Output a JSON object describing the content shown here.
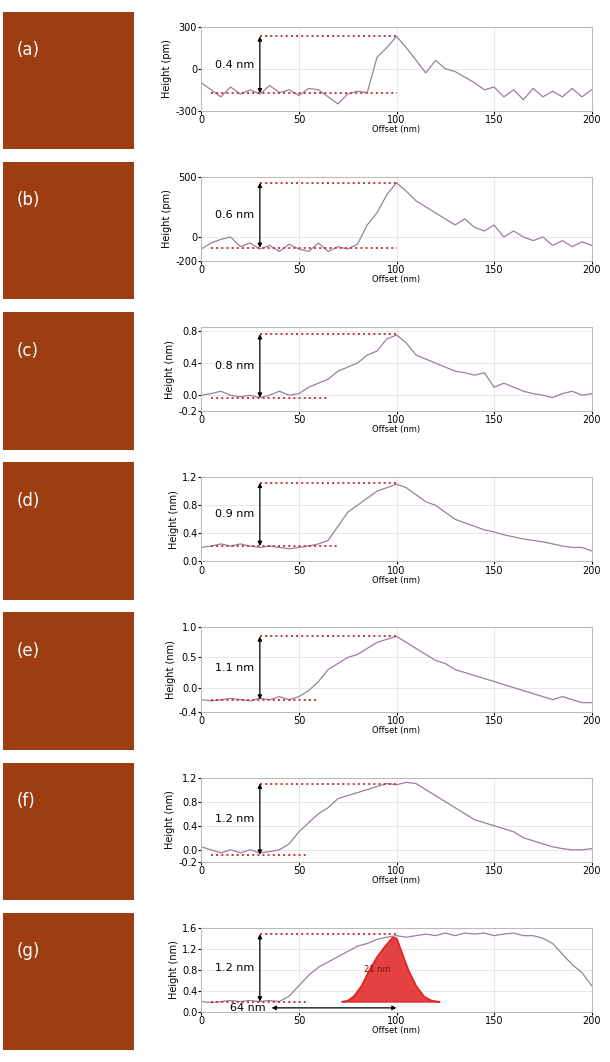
{
  "chart_data": [
    {
      "type": "line",
      "panel_label": "(a)",
      "x_label": "Offset (nm)",
      "y_label": "Height (pm)",
      "color": "#9a7fa0",
      "grid": true,
      "x": [
        0,
        5,
        10,
        15,
        20,
        25,
        30,
        35,
        40,
        45,
        50,
        55,
        60,
        65,
        70,
        75,
        80,
        85,
        90,
        95,
        100,
        105,
        110,
        115,
        120,
        125,
        130,
        135,
        140,
        145,
        150,
        155,
        160,
        165,
        170,
        175,
        180,
        185,
        190,
        195,
        200
      ],
      "values": [
        -100,
        -150,
        -200,
        -130,
        -180,
        -150,
        -180,
        -120,
        -170,
        -150,
        -190,
        -140,
        -150,
        -200,
        -250,
        -180,
        -160,
        -170,
        80,
        150,
        230,
        150,
        60,
        -30,
        60,
        0,
        -20,
        -60,
        -100,
        -150,
        -130,
        -200,
        -150,
        -220,
        -140,
        -200,
        -160,
        -200,
        -140,
        -200,
        -150
      ],
      "xlim": [
        0,
        200
      ],
      "xticks": [
        0,
        50,
        100,
        150,
        200
      ],
      "ylim": [
        -300,
        300
      ],
      "yticks": [
        -300,
        0,
        300
      ],
      "levels": {
        "color": "#d03030",
        "top": {
          "y": 230,
          "x": [
            30,
            100
          ]
        },
        "bottom": {
          "y": -175,
          "x": [
            5,
            100
          ]
        },
        "arrow_x": 30,
        "label": "0.4 nm"
      }
    },
    {
      "type": "line",
      "panel_label": "(b)",
      "x_label": "Offset (nm)",
      "y_label": "Height (pm)",
      "color": "#9a7fa0",
      "grid": true,
      "x": [
        0,
        5,
        10,
        15,
        20,
        25,
        30,
        35,
        40,
        45,
        50,
        55,
        60,
        65,
        70,
        75,
        80,
        85,
        90,
        95,
        100,
        105,
        110,
        115,
        120,
        125,
        130,
        135,
        140,
        145,
        150,
        155,
        160,
        165,
        170,
        175,
        180,
        185,
        190,
        195,
        200
      ],
      "values": [
        -100,
        -50,
        -20,
        0,
        -80,
        -50,
        -100,
        -70,
        -120,
        -60,
        -100,
        -120,
        -50,
        -120,
        -80,
        -100,
        -60,
        100,
        200,
        350,
        450,
        380,
        300,
        250,
        200,
        150,
        100,
        150,
        80,
        50,
        100,
        0,
        50,
        0,
        -30,
        0,
        -70,
        -30,
        -80,
        -40,
        -70
      ],
      "xlim": [
        0,
        200
      ],
      "xticks": [
        0,
        50,
        100,
        150,
        200
      ],
      "ylim": [
        -200,
        500
      ],
      "yticks": [
        -200,
        0,
        500
      ],
      "levels": {
        "color": "#d03030",
        "top": {
          "y": 450,
          "x": [
            30,
            100
          ]
        },
        "bottom": {
          "y": -90,
          "x": [
            5,
            100
          ]
        },
        "arrow_x": 30,
        "label": "0.6 nm"
      }
    },
    {
      "type": "line",
      "panel_label": "(c)",
      "x_label": "Offset (nm)",
      "y_label": "Height (nm)",
      "color": "#9a7fa0",
      "grid": true,
      "x": [
        0,
        5,
        10,
        15,
        20,
        25,
        30,
        35,
        40,
        45,
        50,
        55,
        60,
        65,
        70,
        75,
        80,
        85,
        90,
        95,
        100,
        105,
        110,
        115,
        120,
        125,
        130,
        135,
        140,
        145,
        150,
        155,
        160,
        165,
        170,
        175,
        180,
        185,
        190,
        195,
        200
      ],
      "values": [
        0.0,
        0.02,
        0.05,
        0.0,
        -0.02,
        0.0,
        -0.03,
        0.0,
        0.05,
        0.0,
        0.02,
        0.1,
        0.15,
        0.2,
        0.3,
        0.35,
        0.4,
        0.5,
        0.55,
        0.7,
        0.75,
        0.65,
        0.5,
        0.45,
        0.4,
        0.35,
        0.3,
        0.28,
        0.25,
        0.28,
        0.1,
        0.15,
        0.1,
        0.05,
        0.02,
        0.0,
        -0.03,
        0.02,
        0.05,
        0.0,
        0.02
      ],
      "xlim": [
        0,
        200
      ],
      "xticks": [
        0,
        50,
        100,
        150,
        200
      ],
      "ylim": [
        -0.2,
        0.85
      ],
      "yticks": [
        -0.2,
        {
          "value": 0,
          "label": "0.0"
        },
        0.4,
        0.8
      ],
      "levels": {
        "color": "#d03030",
        "top": {
          "y": 0.76,
          "x": [
            30,
            100
          ]
        },
        "bottom": {
          "y": -0.03,
          "x": [
            5,
            65
          ]
        },
        "arrow_x": 30,
        "label": "0.8 nm"
      }
    },
    {
      "type": "line",
      "panel_label": "(d)",
      "x_label": "Offset (nm)",
      "y_label": "Height (nm)",
      "color": "#9a7fa0",
      "grid": true,
      "x": [
        0,
        5,
        10,
        15,
        20,
        25,
        30,
        35,
        40,
        45,
        50,
        55,
        60,
        65,
        70,
        75,
        80,
        85,
        90,
        95,
        100,
        105,
        110,
        115,
        120,
        125,
        130,
        135,
        140,
        145,
        150,
        155,
        160,
        165,
        170,
        175,
        180,
        185,
        190,
        195,
        200
      ],
      "values": [
        0.2,
        0.22,
        0.25,
        0.22,
        0.25,
        0.22,
        0.2,
        0.22,
        0.2,
        0.18,
        0.2,
        0.22,
        0.25,
        0.3,
        0.5,
        0.7,
        0.8,
        0.9,
        1.0,
        1.05,
        1.1,
        1.05,
        0.95,
        0.85,
        0.8,
        0.7,
        0.6,
        0.55,
        0.5,
        0.45,
        0.42,
        0.38,
        0.35,
        0.32,
        0.3,
        0.28,
        0.25,
        0.22,
        0.2,
        0.2,
        0.15
      ],
      "xlim": [
        0,
        200
      ],
      "xticks": [
        0,
        50,
        100,
        150,
        200
      ],
      "ylim": [
        0,
        1.2
      ],
      "yticks": [
        {
          "value": 0,
          "label": "0.0"
        },
        0.4,
        0.8,
        1.2
      ],
      "levels": {
        "color": "#d03030",
        "top": {
          "y": 1.12,
          "x": [
            30,
            100
          ]
        },
        "bottom": {
          "y": 0.22,
          "x": [
            5,
            70
          ]
        },
        "arrow_x": 30,
        "label": "0.9 nm"
      }
    },
    {
      "type": "line",
      "panel_label": "(e)",
      "x_label": "Offset (nm)",
      "y_label": "Height (nm)",
      "color": "#9a7fa0",
      "grid": true,
      "x": [
        0,
        5,
        10,
        15,
        20,
        25,
        30,
        35,
        40,
        45,
        50,
        55,
        60,
        65,
        70,
        75,
        80,
        85,
        90,
        95,
        100,
        105,
        110,
        115,
        120,
        125,
        130,
        135,
        140,
        145,
        150,
        155,
        160,
        165,
        170,
        175,
        180,
        185,
        190,
        195,
        200
      ],
      "values": [
        -0.2,
        -0.22,
        -0.2,
        -0.18,
        -0.2,
        -0.22,
        -0.18,
        -0.2,
        -0.15,
        -0.2,
        -0.15,
        -0.05,
        0.1,
        0.3,
        0.4,
        0.5,
        0.55,
        0.65,
        0.75,
        0.8,
        0.85,
        0.75,
        0.65,
        0.55,
        0.45,
        0.4,
        0.3,
        0.25,
        0.2,
        0.15,
        0.1,
        0.05,
        0.0,
        -0.05,
        -0.1,
        -0.15,
        -0.2,
        -0.15,
        -0.2,
        -0.25,
        -0.25
      ],
      "xlim": [
        0,
        200
      ],
      "xticks": [
        0,
        50,
        100,
        150,
        200
      ],
      "ylim": [
        -0.4,
        1.0
      ],
      "yticks": [
        -0.4,
        {
          "value": 0,
          "label": "0.0"
        },
        0.5,
        1.0
      ],
      "levels": {
        "color": "#d03030",
        "top": {
          "y": 0.85,
          "x": [
            30,
            100
          ]
        },
        "bottom": {
          "y": -0.2,
          "x": [
            5,
            60
          ]
        },
        "arrow_x": 30,
        "label": "1.1 nm"
      }
    },
    {
      "type": "line",
      "panel_label": "(f)",
      "x_label": "Offset (nm)",
      "y_label": "Height (nm)",
      "color": "#9a7fa0",
      "grid": true,
      "x": [
        0,
        5,
        10,
        15,
        20,
        25,
        30,
        35,
        40,
        45,
        50,
        55,
        60,
        65,
        70,
        75,
        80,
        85,
        90,
        95,
        100,
        105,
        110,
        115,
        120,
        125,
        130,
        135,
        140,
        145,
        150,
        155,
        160,
        165,
        170,
        175,
        180,
        185,
        190,
        195,
        200
      ],
      "values": [
        0.05,
        0.0,
        -0.05,
        0.0,
        -0.05,
        0.0,
        -0.05,
        -0.03,
        0.0,
        0.1,
        0.3,
        0.45,
        0.6,
        0.7,
        0.85,
        0.9,
        0.95,
        1.0,
        1.05,
        1.1,
        1.08,
        1.12,
        1.1,
        1.0,
        0.9,
        0.8,
        0.7,
        0.6,
        0.5,
        0.45,
        0.4,
        0.35,
        0.3,
        0.2,
        0.15,
        0.1,
        0.05,
        0.02,
        0.0,
        0.0,
        0.02
      ],
      "xlim": [
        0,
        200
      ],
      "xticks": [
        0,
        50,
        100,
        150,
        200
      ],
      "ylim": [
        -0.2,
        1.2
      ],
      "yticks": [
        -0.2,
        {
          "value": 0,
          "label": "0.0"
        },
        0.4,
        0.8,
        1.2
      ],
      "levels": {
        "color": "#d03030",
        "top": {
          "y": 1.1,
          "x": [
            30,
            100
          ]
        },
        "bottom": {
          "y": -0.08,
          "x": [
            5,
            55
          ]
        },
        "arrow_x": 30,
        "label": "1.2 nm"
      }
    },
    {
      "type": "line",
      "panel_label": "(g)",
      "x_label": "Offset (nm)",
      "y_label": "Height (nm)",
      "color": "#9a7fa0",
      "grid": true,
      "x": [
        0,
        5,
        10,
        15,
        20,
        25,
        30,
        35,
        40,
        45,
        50,
        55,
        60,
        65,
        70,
        75,
        80,
        85,
        90,
        95,
        100,
        105,
        110,
        115,
        120,
        125,
        130,
        135,
        140,
        145,
        150,
        155,
        160,
        165,
        170,
        175,
        180,
        185,
        190,
        195,
        200
      ],
      "values": [
        0.2,
        0.18,
        0.2,
        0.22,
        0.2,
        0.22,
        0.2,
        0.22,
        0.2,
        0.3,
        0.5,
        0.7,
        0.85,
        0.95,
        1.05,
        1.15,
        1.25,
        1.3,
        1.38,
        1.42,
        1.45,
        1.42,
        1.45,
        1.48,
        1.45,
        1.5,
        1.45,
        1.5,
        1.48,
        1.5,
        1.45,
        1.48,
        1.5,
        1.45,
        1.45,
        1.4,
        1.3,
        1.1,
        0.9,
        0.75,
        0.5
      ],
      "xlim": [
        0,
        200
      ],
      "xticks": [
        0,
        50,
        100,
        150,
        200
      ],
      "ylim": [
        0,
        1.6
      ],
      "yticks": [
        {
          "value": 0,
          "label": "0.0"
        },
        0.4,
        0.8,
        1.2,
        1.6
      ],
      "levels": {
        "color": "#d03030",
        "top": {
          "y": 1.48,
          "x": [
            30,
            100
          ]
        },
        "bottom": {
          "y": 0.2,
          "x": [
            5,
            55
          ]
        },
        "arrow_x": 30,
        "label": "1.2 nm"
      },
      "tip": {
        "x": [
          72,
          75,
          78,
          82,
          86,
          90,
          94,
          98,
          100,
          103,
          106,
          110,
          114,
          118,
          122
        ],
        "y": [
          0.2,
          0.22,
          0.3,
          0.5,
          0.8,
          1.05,
          1.25,
          1.42,
          1.4,
          1.1,
          0.8,
          0.5,
          0.3,
          0.22,
          0.2
        ],
        "label": "21 nm",
        "color": "#e02020"
      },
      "width": {
        "x": [
          36,
          100
        ],
        "y": 0.08,
        "label": "64 nm"
      }
    }
  ]
}
